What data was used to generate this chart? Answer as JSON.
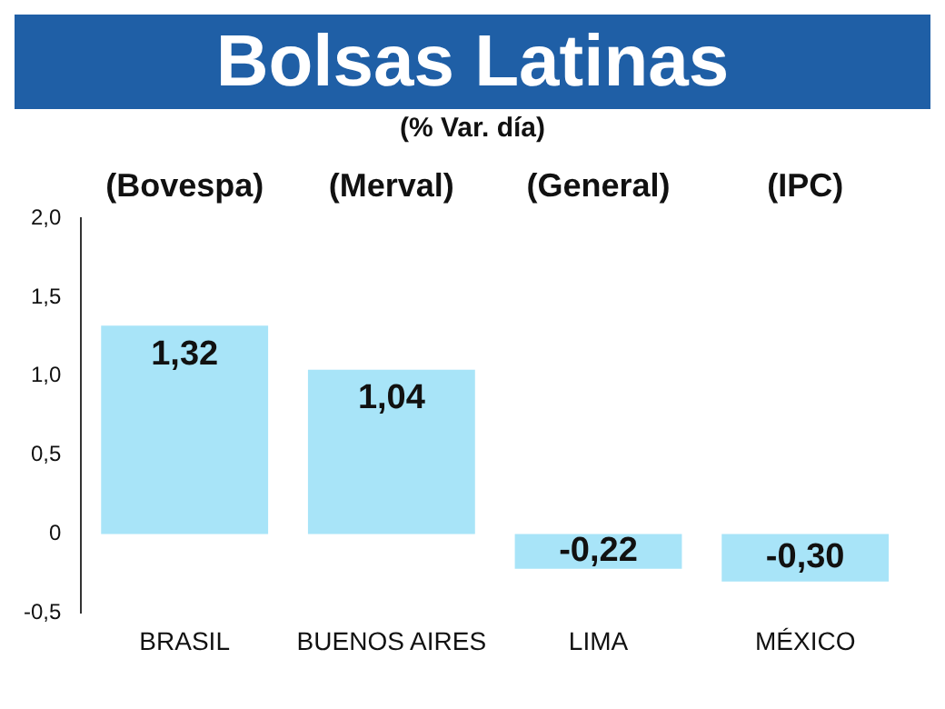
{
  "chart_data": {
    "type": "bar",
    "title": "Bolsas Latinas",
    "subtitle": "(% Var. día)",
    "categories": [
      "BRASIL",
      "BUENOS AIRES",
      "LIMA",
      "MÉXICO"
    ],
    "values": [
      1.32,
      1.04,
      -0.22,
      -0.3
    ],
    "value_labels": [
      "1,32",
      "1,04",
      "-0,22",
      "-0,30"
    ],
    "color": "#a8e4f8",
    "ylim": [
      -0.5,
      2.0
    ],
    "yticks": [
      {
        "value": -0.5,
        "label": "-0,5"
      },
      0,
      {
        "value": 0.5,
        "label": "0,5"
      },
      {
        "value": 1,
        "label": "1,0"
      },
      {
        "value": 1.5,
        "label": "1,5"
      },
      {
        "value": 2,
        "label": "2,0"
      }
    ],
    "annotations": [
      "(Bovespa)",
      "(Merval)",
      "(General)",
      "(IPC)"
    ],
    "grid": false,
    "legend": false
  }
}
